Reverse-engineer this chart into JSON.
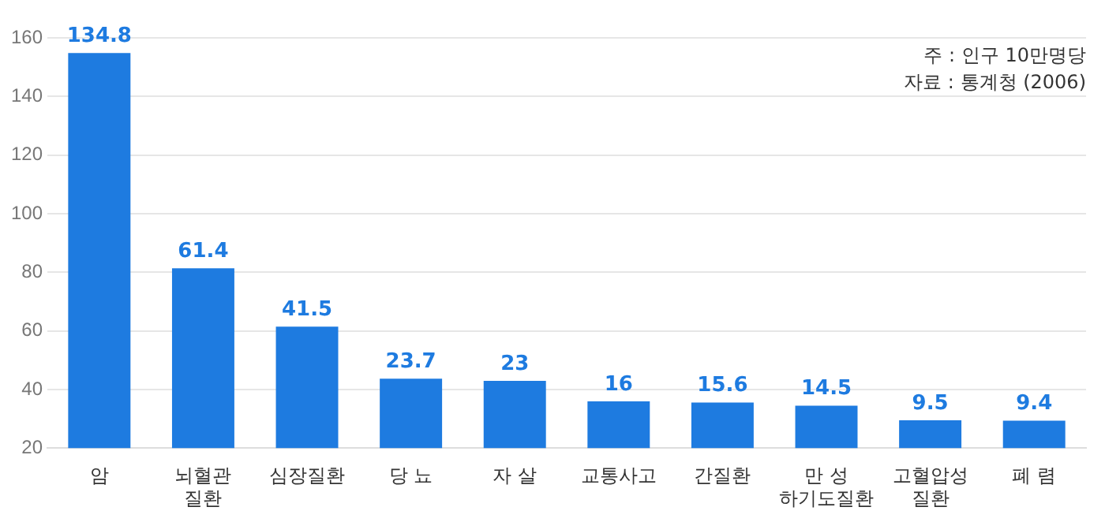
{
  "chart_data": {
    "type": "bar",
    "categories": [
      "암",
      "뇌혈관\n질환",
      "심장질환",
      "당 뇨",
      "자 살",
      "교통사고",
      "간질환",
      "만 성\n하기도질환",
      "고혈압성\n질환",
      "폐 렴"
    ],
    "values": [
      134.8,
      61.4,
      41.5,
      23.7,
      23,
      16,
      15.6,
      14.5,
      9.5,
      9.4
    ],
    "base": [
      20,
      20,
      20,
      20,
      20,
      20,
      20,
      20,
      20,
      20
    ],
    "color": "#1e7be0",
    "ylim": [
      20,
      160
    ],
    "yticks": [
      20,
      40,
      60,
      80,
      100,
      120,
      140,
      160
    ],
    "grid": "y",
    "data_labels": true,
    "annotations": [
      "주 : 인구 10만명당",
      "자료 : 통계청 (2006)"
    ]
  }
}
